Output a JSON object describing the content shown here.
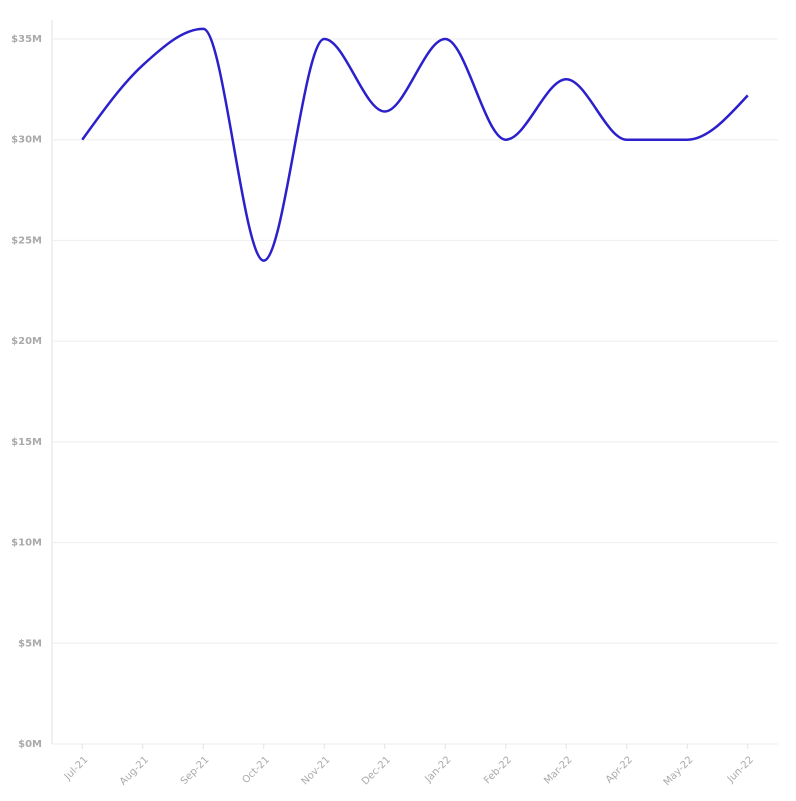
{
  "chart_data": {
    "type": "line",
    "categories": [
      "Jul-21",
      "Aug-21",
      "Sep-21",
      "Oct-21",
      "Nov-21",
      "Dec-21",
      "Jan-22",
      "Feb-22",
      "Mar-22",
      "Apr-22",
      "May-22",
      "Jun-22"
    ],
    "values": [
      30,
      33.7,
      35.5,
      24,
      35,
      31.4,
      35,
      30,
      33,
      30,
      30,
      32.2
    ],
    "color": "#2b20cc",
    "ylim": [
      0,
      35
    ],
    "yticks": [
      {
        "value": 0,
        "label": "$0M"
      },
      {
        "value": 5,
        "label": "$5M"
      },
      {
        "value": 10,
        "label": "$10M"
      },
      {
        "value": 15,
        "label": "$15M"
      },
      {
        "value": 20,
        "label": "$20M"
      },
      {
        "value": 25,
        "label": "$25M"
      },
      {
        "value": 30,
        "label": "$30M"
      },
      {
        "value": 35,
        "label": "$35M"
      }
    ],
    "grid": true
  }
}
